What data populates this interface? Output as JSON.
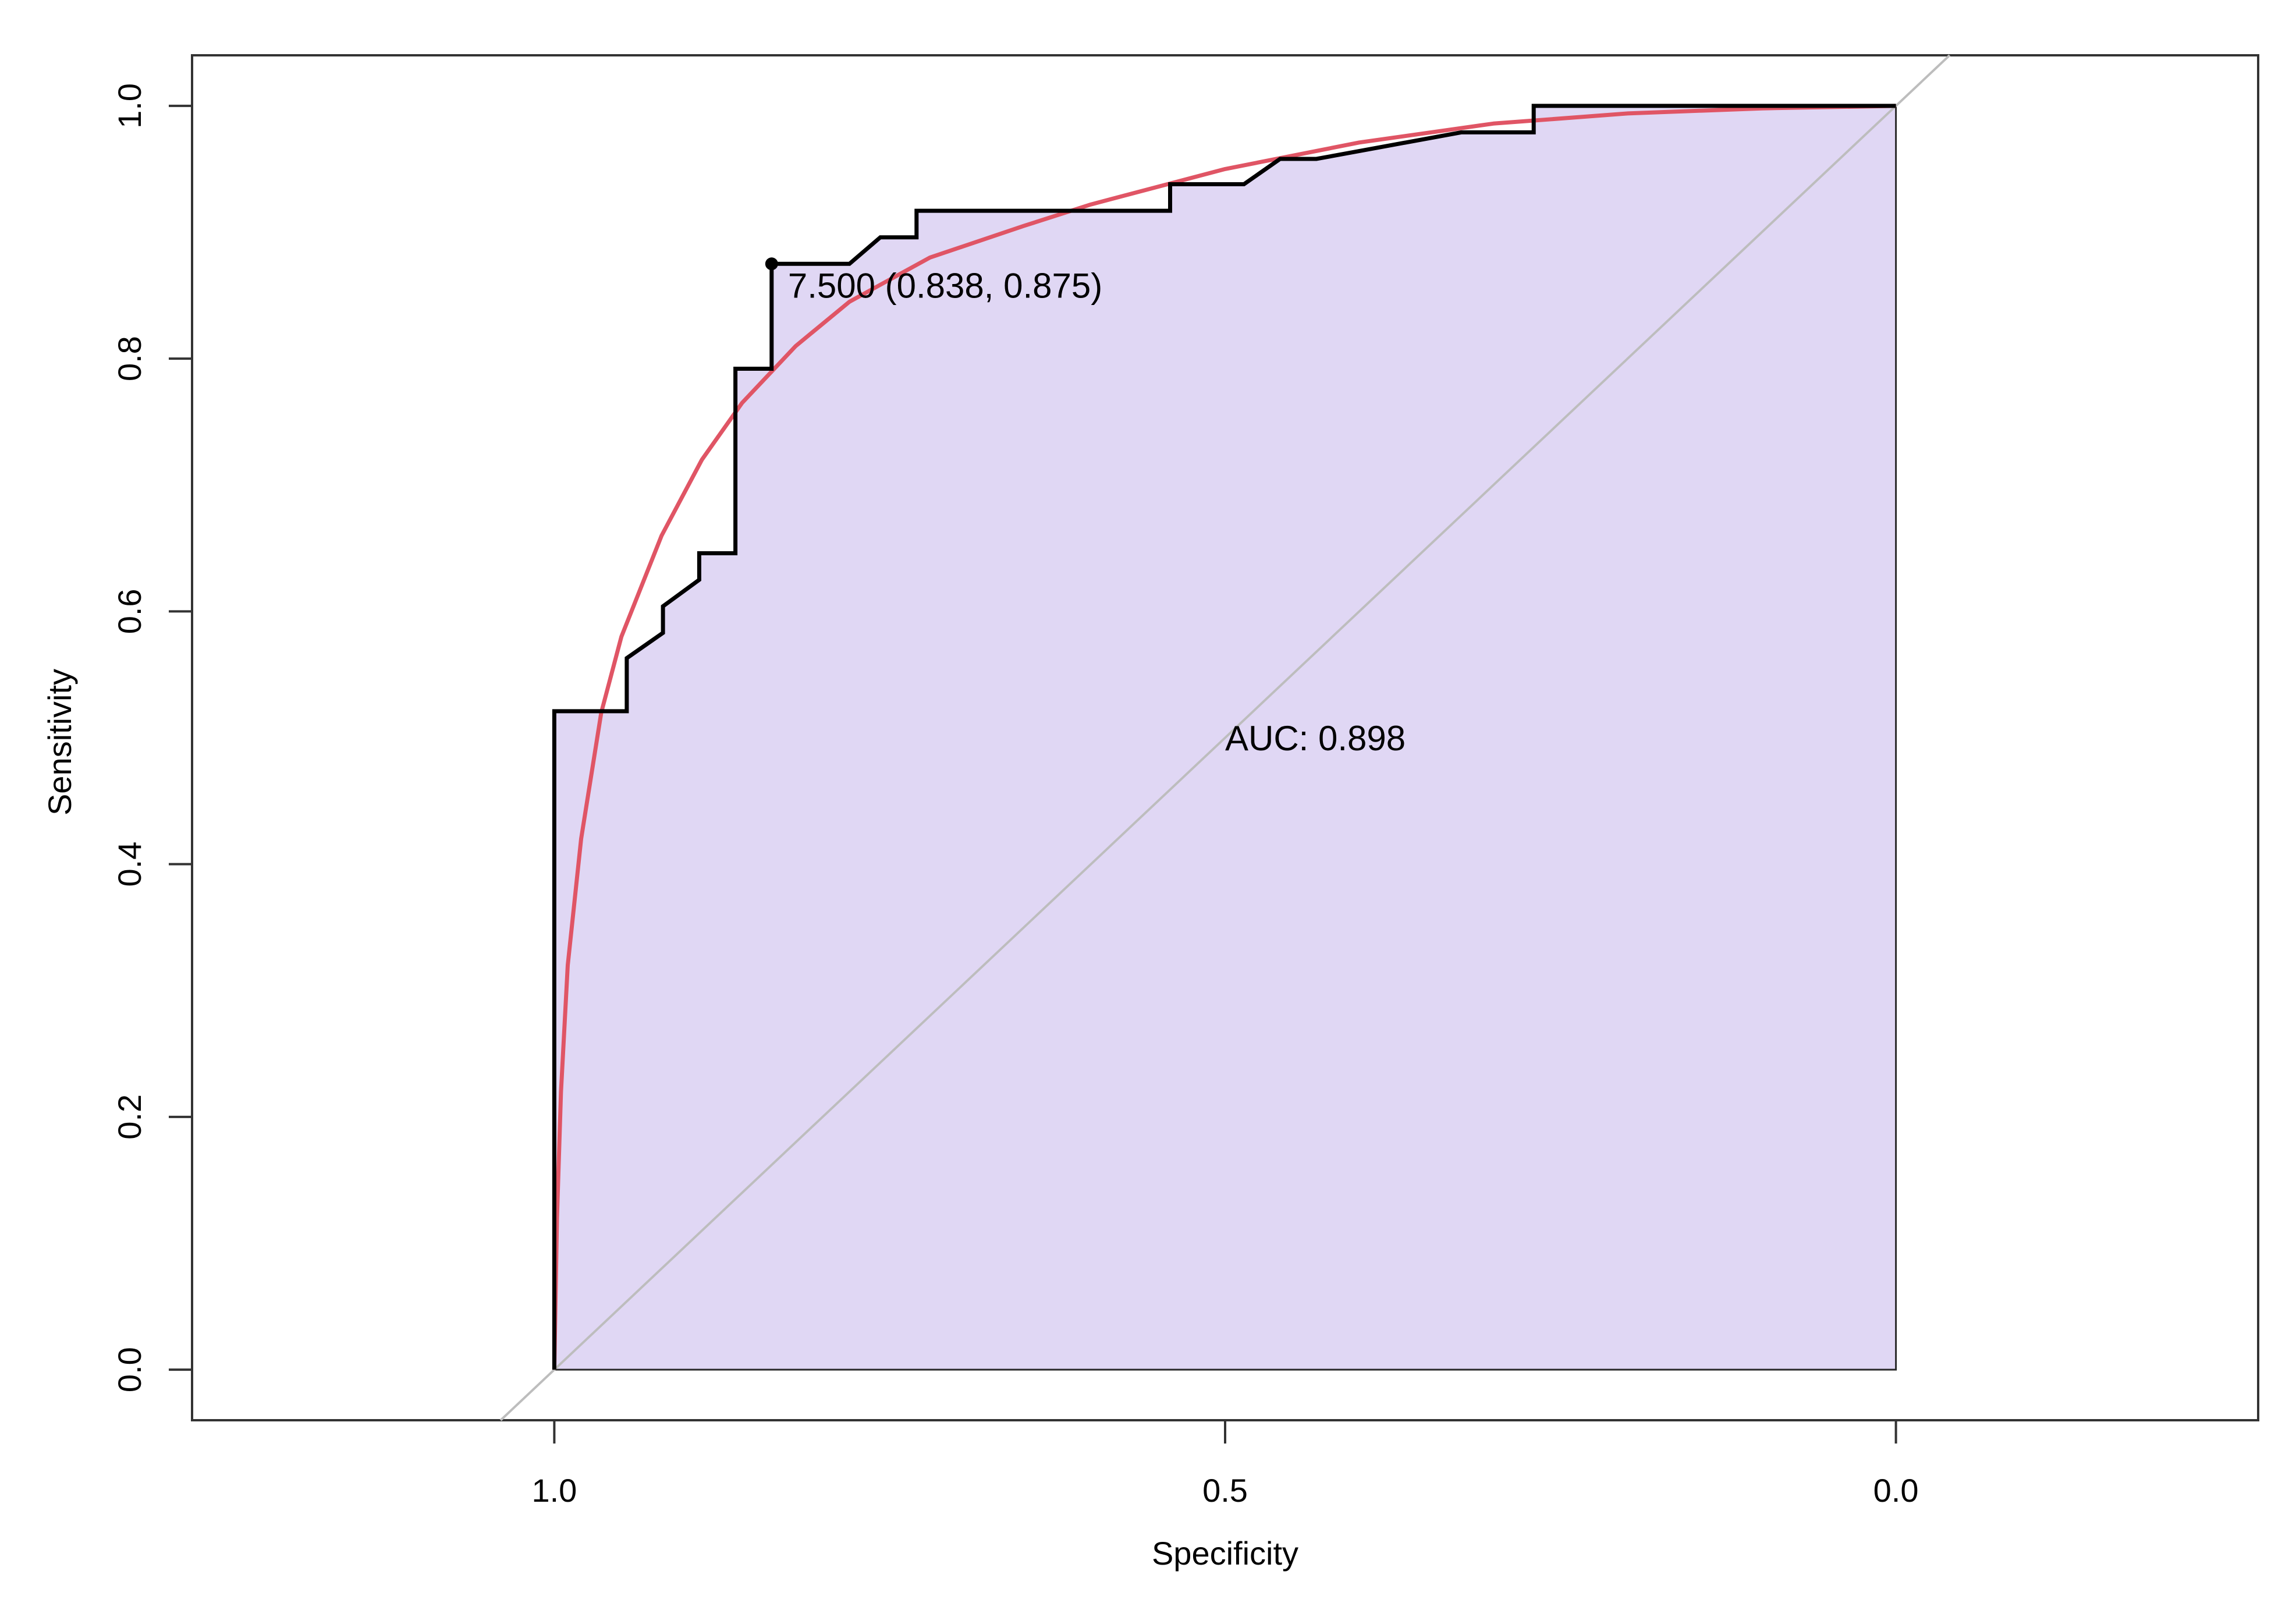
{
  "chart_data": {
    "type": "line",
    "title": "",
    "xlabel": "Specificity",
    "ylabel": "Sensitivity",
    "x_reversed": true,
    "xlim": [
      1.27,
      -0.27
    ],
    "ylim": [
      -0.04,
      1.04
    ],
    "x_ticks": [
      1.0,
      0.5,
      0.0
    ],
    "x_tick_labels": [
      "1.0",
      "0.5",
      "0.0"
    ],
    "y_ticks": [
      0.0,
      0.2,
      0.4,
      0.6,
      0.8,
      1.0
    ],
    "y_tick_labels": [
      "0.0",
      "0.2",
      "0.4",
      "0.6",
      "0.8",
      "1.0"
    ],
    "grid": false,
    "legend": "none",
    "colors": {
      "roc_line": "#000000",
      "smooth_curve": "#e05565",
      "auc_fill": "#e0d7f4",
      "diagonal": "#bdbdbd"
    },
    "series": [
      {
        "kind": "empirical-roc-step",
        "points": [
          [
            1.0,
            0.0
          ],
          [
            1.0,
            0.521
          ],
          [
            0.946,
            0.521
          ],
          [
            0.946,
            0.563
          ],
          [
            0.919,
            0.583
          ],
          [
            0.919,
            0.604
          ],
          [
            0.892,
            0.625
          ],
          [
            0.892,
            0.646
          ],
          [
            0.865,
            0.646
          ],
          [
            0.865,
            0.792
          ],
          [
            0.838,
            0.792
          ],
          [
            0.838,
            0.875
          ],
          [
            0.78,
            0.875
          ],
          [
            0.757,
            0.896
          ],
          [
            0.73,
            0.896
          ],
          [
            0.73,
            0.917
          ],
          [
            0.541,
            0.917
          ],
          [
            0.541,
            0.938
          ],
          [
            0.486,
            0.938
          ],
          [
            0.459,
            0.958
          ],
          [
            0.432,
            0.958
          ],
          [
            0.324,
            0.979
          ],
          [
            0.27,
            0.979
          ],
          [
            0.27,
            1.0
          ],
          [
            0.0,
            1.0
          ]
        ]
      },
      {
        "kind": "smoothed-roc",
        "points": [
          [
            1.0,
            0.0
          ],
          [
            0.998,
            0.12
          ],
          [
            0.995,
            0.22
          ],
          [
            0.99,
            0.32
          ],
          [
            0.98,
            0.42
          ],
          [
            0.965,
            0.52
          ],
          [
            0.95,
            0.58
          ],
          [
            0.92,
            0.66
          ],
          [
            0.89,
            0.72
          ],
          [
            0.86,
            0.765
          ],
          [
            0.82,
            0.81
          ],
          [
            0.78,
            0.845
          ],
          [
            0.72,
            0.88
          ],
          [
            0.65,
            0.905
          ],
          [
            0.6,
            0.922
          ],
          [
            0.5,
            0.95
          ],
          [
            0.4,
            0.971
          ],
          [
            0.3,
            0.986
          ],
          [
            0.2,
            0.994
          ],
          [
            0.1,
            0.998
          ],
          [
            0.0,
            1.0
          ]
        ]
      }
    ],
    "diagonal": [
      [
        1.0,
        0.0
      ],
      [
        0.0,
        1.0
      ]
    ],
    "threshold_point": {
      "specificity": 0.838,
      "sensitivity": 0.875
    },
    "annotations": {
      "threshold": "7.500 (0.838, 0.875)",
      "auc": "AUC: 0.898"
    },
    "auc_text_position": {
      "specificity": 0.5,
      "sensitivity": 0.49
    }
  }
}
